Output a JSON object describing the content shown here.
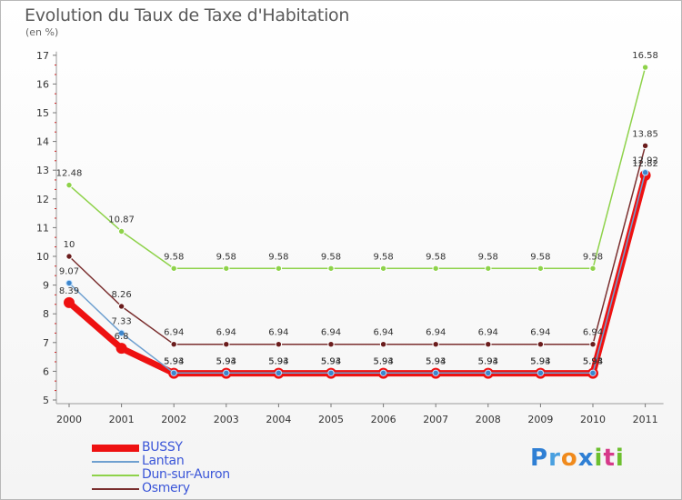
{
  "title": "Evolution du Taux de Taxe d'Habitation",
  "unit": "(en %)",
  "logo": {
    "letters": [
      "P",
      "r",
      "o",
      "x",
      "i",
      "t",
      "i"
    ],
    "colors": [
      "#2f7fd4",
      "#4aa0e0",
      "#f08a1c",
      "#2f7fd4",
      "#6cbf2e",
      "#d63a8a",
      "#6cbf2e"
    ]
  },
  "chart_data": {
    "type": "line",
    "x": [
      "2000",
      "2001",
      "2002",
      "2003",
      "2004",
      "2005",
      "2006",
      "2007",
      "2008",
      "2009",
      "2010",
      "2011"
    ],
    "ylim": [
      5,
      17
    ],
    "yticks": [
      "5",
      "6",
      "7",
      "8",
      "9",
      "10",
      "11",
      "12",
      "13",
      "14",
      "15",
      "16",
      "17"
    ],
    "grid": false,
    "legend_position": "bottom-left",
    "series": [
      {
        "name": "BUSSY",
        "color": "#ee1111",
        "values": [
          8.39,
          6.8,
          5.93,
          5.93,
          5.93,
          5.93,
          5.93,
          5.93,
          5.93,
          5.93,
          5.93,
          12.82
        ],
        "labels": [
          "8.39",
          "6.8",
          "5.93",
          "5.93",
          "5.93",
          "5.93",
          "5.93",
          "5.93",
          "5.93",
          "5.93",
          "5.93",
          "12.82"
        ]
      },
      {
        "name": "Lantan",
        "color": "#6fa0d0",
        "values": [
          9.07,
          7.33,
          5.94,
          5.94,
          5.94,
          5.94,
          5.94,
          5.94,
          5.94,
          5.94,
          5.94,
          12.92
        ],
        "labels": [
          "9.07",
          "7.33",
          "5.94",
          "5.94",
          "5.94",
          "5.94",
          "5.94",
          "5.94",
          "5.94",
          "5.94",
          "5.94",
          "12.92"
        ]
      },
      {
        "name": "Dun-sur-Auron",
        "color": "#8ed24a",
        "values": [
          12.48,
          10.87,
          9.58,
          9.58,
          9.58,
          9.58,
          9.58,
          9.58,
          9.58,
          9.58,
          9.58,
          16.58
        ],
        "labels": [
          "12.48",
          "10.87",
          "9.58",
          "9.58",
          "9.58",
          "9.58",
          "9.58",
          "9.58",
          "9.58",
          "9.58",
          "9.58",
          "16.58"
        ]
      },
      {
        "name": "Osmery",
        "color": "#7a2e2e",
        "values": [
          10,
          8.26,
          6.94,
          6.94,
          6.94,
          6.94,
          6.94,
          6.94,
          6.94,
          6.94,
          6.94,
          13.85
        ],
        "labels": [
          "10",
          "8.26",
          "6.94",
          "6.94",
          "6.94",
          "6.94",
          "6.94",
          "6.94",
          "6.94",
          "6.94",
          "6.94",
          "13.85"
        ]
      }
    ]
  }
}
